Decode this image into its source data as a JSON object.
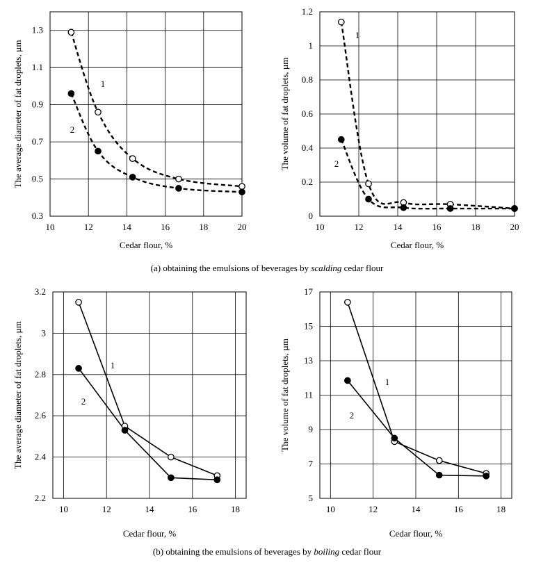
{
  "captions": {
    "a_pre": "(a) obtaining the emulsions of beverages by ",
    "a_em": "scalding",
    "a_post": " cedar flour",
    "b_pre": "(b) obtaining the emulsions of beverages by ",
    "b_em": "boiling",
    "b_post": " cedar flour"
  },
  "chart_data": [
    {
      "type": "line",
      "panel": "a-left",
      "xlabel": "Cedar flour, %",
      "ylabel": "The average diameter of fat droplets, µm",
      "xlim": [
        10,
        20
      ],
      "ylim": [
        0.3,
        1.4
      ],
      "xticks": [
        10,
        12,
        14,
        16,
        18,
        20
      ],
      "yticks": [
        0.3,
        0.5,
        0.7,
        0.9,
        1.1,
        1.3
      ],
      "ytick_labels": [
        "0.3",
        "0.5",
        "0.7",
        "0.9",
        "1.1",
        "1.3"
      ],
      "grid": true,
      "line_style": "dashed-smooth",
      "series": [
        {
          "name": "1",
          "marker": "open",
          "x": [
            11.1,
            12.5,
            14.3,
            16.7,
            20.0
          ],
          "y": [
            1.29,
            0.86,
            0.61,
            0.5,
            0.46
          ]
        },
        {
          "name": "2",
          "marker": "filled",
          "x": [
            11.1,
            12.5,
            14.3,
            16.7,
            20.0
          ],
          "y": [
            0.96,
            0.65,
            0.51,
            0.45,
            0.43
          ]
        }
      ]
    },
    {
      "type": "line",
      "panel": "a-right",
      "xlabel": "Cedar flour, %",
      "ylabel": "The volume of fat droplets, µm",
      "xlim": [
        10,
        20
      ],
      "ylim": [
        0,
        1.2
      ],
      "xticks": [
        10,
        12,
        14,
        16,
        18,
        20
      ],
      "yticks": [
        0,
        0.2,
        0.4,
        0.6,
        0.8,
        1.0,
        1.2
      ],
      "ytick_labels": [
        "0",
        "0.2",
        "0.4",
        "0.6",
        "0.8",
        "1",
        "1.2"
      ],
      "grid": true,
      "line_style": "dashed-smooth",
      "series": [
        {
          "name": "1",
          "marker": "open",
          "x": [
            11.1,
            12.5,
            14.3,
            16.7,
            20.0
          ],
          "y": [
            1.14,
            0.19,
            0.08,
            0.07,
            0.045
          ]
        },
        {
          "name": "2",
          "marker": "filled",
          "x": [
            11.1,
            12.5,
            14.3,
            16.7,
            20.0
          ],
          "y": [
            0.45,
            0.1,
            0.05,
            0.045,
            0.045
          ]
        }
      ]
    },
    {
      "type": "line",
      "panel": "b-left",
      "xlabel": "Cedar flour, %",
      "ylabel": "The average diameter of fat droplets, µm",
      "xlim": [
        9.5,
        18.5
      ],
      "ylim": [
        2.2,
        3.2
      ],
      "xticks": [
        10,
        12,
        14,
        16,
        18
      ],
      "yticks": [
        2.2,
        2.4,
        2.6,
        2.8,
        3.0,
        3.2
      ],
      "ytick_labels": [
        "2.2",
        "2.4",
        "2.6",
        "2.8",
        "3",
        "3.2"
      ],
      "grid": true,
      "line_style": "solid",
      "series": [
        {
          "name": "1",
          "marker": "open",
          "x": [
            10.7,
            12.85,
            15.0,
            17.15
          ],
          "y": [
            3.15,
            2.55,
            2.4,
            2.31
          ]
        },
        {
          "name": "2",
          "marker": "filled",
          "x": [
            10.7,
            12.85,
            15.0,
            17.15
          ],
          "y": [
            2.83,
            2.53,
            2.3,
            2.29
          ]
        }
      ]
    },
    {
      "type": "line",
      "panel": "b-right",
      "xlabel": "Cedar flour, %",
      "ylabel": "The volume of fat droplets, µm",
      "xlim": [
        9.5,
        18.5
      ],
      "ylim": [
        5,
        17
      ],
      "xticks": [
        10,
        12,
        14,
        16,
        18
      ],
      "yticks": [
        5,
        7,
        9,
        11,
        13,
        15,
        17
      ],
      "ytick_labels": [
        "5",
        "7",
        "9",
        "11",
        "13",
        "15",
        "17"
      ],
      "grid": true,
      "line_style": "solid",
      "series": [
        {
          "name": "1",
          "marker": "open",
          "x": [
            10.8,
            13.0,
            15.1,
            17.3
          ],
          "y": [
            16.4,
            8.3,
            7.2,
            6.45
          ]
        },
        {
          "name": "2",
          "marker": "filled",
          "x": [
            10.8,
            13.0,
            15.1,
            17.3
          ],
          "y": [
            11.85,
            8.5,
            6.35,
            6.3
          ]
        }
      ]
    }
  ]
}
